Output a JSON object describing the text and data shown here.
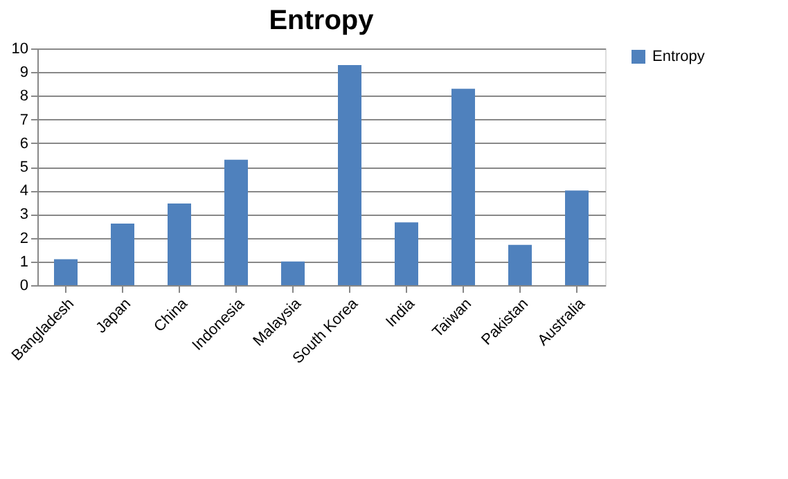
{
  "chart_data": {
    "type": "bar",
    "title": "Entropy",
    "categories": [
      "Bangladesh",
      "Japan",
      "China",
      "Indonesia",
      "Malaysia",
      "South Korea",
      "India",
      "Taiwan",
      "Pakistan",
      "Australia"
    ],
    "series": [
      {
        "name": "Entropy",
        "color": "#4f81bd",
        "values": [
          1.1,
          2.6,
          3.45,
          5.3,
          1.0,
          9.3,
          2.65,
          8.3,
          1.7,
          4.0
        ]
      }
    ],
    "ylim": [
      0,
      10
    ],
    "yticks": [
      0,
      1,
      2,
      3,
      4,
      5,
      6,
      7,
      8,
      9,
      10
    ],
    "grid": "y",
    "legend": "right"
  }
}
